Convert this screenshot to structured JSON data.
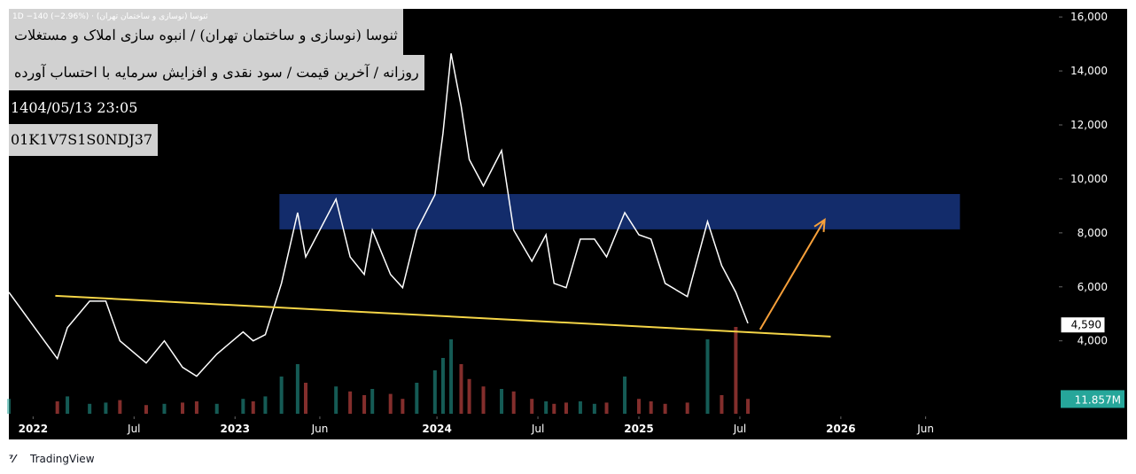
{
  "header": {
    "symbol_line": "ثنوسا (نوسازی و ساختمان تهران) · 1D  −140 (−2.96%)",
    "title": "ثنوسا (نوسازی و ساختمان تهران) / انبوه سازی املاک و مستغلات",
    "subtitle": "روزانه / آخرین قیمت / سود نقدی و افزایش سرمایه با احتساب آورده",
    "datetime": "1404/05/13 23:05",
    "id": "01K1V7S1S0NDJ37"
  },
  "footer": {
    "brand": "TradingView"
  },
  "chart_data": {
    "type": "line",
    "x": [
      2021.88,
      2022.12,
      2022.17,
      2022.28,
      2022.36,
      2022.43,
      2022.56,
      2022.65,
      2022.74,
      2022.81,
      2022.91,
      2023.04,
      2023.09,
      2023.15,
      2023.23,
      2023.31,
      2023.35,
      2023.5,
      2023.57,
      2023.64,
      2023.68,
      2023.77,
      2023.83,
      2023.9,
      2023.99,
      2024.03,
      2024.07,
      2024.12,
      2024.16,
      2024.23,
      2024.32,
      2024.38,
      2024.47,
      2024.54,
      2024.58,
      2024.64,
      2024.71,
      2024.78,
      2024.84,
      2024.93,
      2025.0,
      2025.06,
      2025.13,
      2025.24,
      2025.34,
      2025.41,
      2025.48,
      2025.54
    ],
    "series": [
      {
        "color": "#ffffff",
        "values": [
          5800,
          3340,
          4490,
          5470,
          5470,
          4000,
          3180,
          4000,
          3020,
          2690,
          3510,
          4330,
          4000,
          4230,
          6130,
          8750,
          7110,
          9250,
          7110,
          6460,
          8100,
          6460,
          5970,
          8100,
          9410,
          11700,
          14650,
          12690,
          10720,
          9740,
          11050,
          8100,
          6950,
          7930,
          6130,
          5970,
          7770,
          7770,
          7110,
          8750,
          7930,
          7770,
          6130,
          5640,
          8420,
          6790,
          5800,
          4650
        ]
      }
    ],
    "volume": {
      "up_color": "#26a69a",
      "down_color": "#ef5350",
      "ylim": [
        0,
        80
      ],
      "values": [
        12,
        10,
        14,
        8,
        9,
        11,
        7,
        8,
        9,
        10,
        8,
        12,
        10,
        14,
        30,
        40,
        25,
        22,
        18,
        15,
        20,
        16,
        12,
        25,
        35,
        45,
        60,
        40,
        28,
        22,
        20,
        18,
        12,
        10,
        8,
        9,
        10,
        8,
        9,
        30,
        12,
        10,
        8,
        9,
        60,
        15,
        70,
        12
      ]
    },
    "xlim": [
      2021.88,
      2027.08
    ],
    "ylim": [
      1200,
      16300
    ],
    "xticks": [
      {
        "value": 2022,
        "label": "2022"
      },
      {
        "value": 2022.5,
        "label": "Jul"
      },
      {
        "value": 2023,
        "label": "2023"
      },
      {
        "value": 2023.42,
        "label": "Jun"
      },
      {
        "value": 2024,
        "label": "2024"
      },
      {
        "value": 2024.5,
        "label": "Jul"
      },
      {
        "value": 2025,
        "label": "2025"
      },
      {
        "value": 2025.5,
        "label": "Jul"
      },
      {
        "value": 2026,
        "label": "2026"
      },
      {
        "value": 2026.42,
        "label": "Jun"
      }
    ],
    "yticks": [
      {
        "value": 4000,
        "label": "4,000"
      },
      {
        "value": 6000,
        "label": "6,000"
      },
      {
        "value": 8000,
        "label": "8,000"
      },
      {
        "value": 10000,
        "label": "10,000"
      },
      {
        "value": 12000,
        "label": "12,000"
      },
      {
        "value": 14000,
        "label": "14,000"
      },
      {
        "value": 16000,
        "label": "16,000"
      }
    ],
    "last_price": {
      "value": 4590,
      "label": "4,590"
    },
    "last_volume": {
      "value": 11.857,
      "label": "11.857M"
    },
    "zone": {
      "x": [
        2023.22,
        2026.59
      ],
      "y": [
        8130,
        9440
      ],
      "color": "#132c6b"
    },
    "trendline": {
      "x": [
        2022.11,
        2025.95
      ],
      "y": [
        5670,
        4160
      ],
      "color": "#f5d547"
    },
    "arrow": {
      "x": [
        2025.6,
        2025.92
      ],
      "y": [
        4420,
        8490
      ],
      "color": "#f7a03a"
    }
  }
}
